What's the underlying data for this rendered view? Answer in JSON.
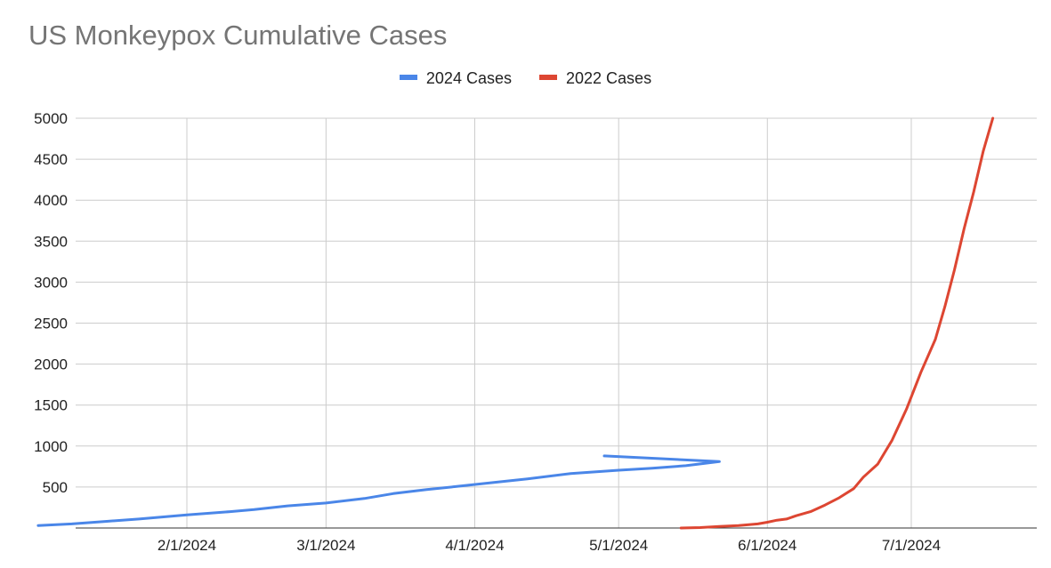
{
  "chart_data": {
    "type": "line",
    "title": "US Monkeypox Cumulative Cases",
    "xlabel": "",
    "ylabel": "",
    "ylim": [
      0,
      5000
    ],
    "yticks": [
      "500",
      "1000",
      "1500",
      "2000",
      "2500",
      "3000",
      "3500",
      "4000",
      "4500",
      "5000"
    ],
    "xticks": [
      "2/1/2024",
      "3/1/2024",
      "4/1/2024",
      "5/1/2024",
      "6/1/2024",
      "7/1/2024"
    ],
    "grid": true,
    "legend_position": "top",
    "series": [
      {
        "name": "2024 Cases",
        "color": "#4a86e8",
        "points": [
          [
            "1/1/2024",
            30
          ],
          [
            "1/8/2024",
            50
          ],
          [
            "1/15/2024",
            80
          ],
          [
            "1/22/2024",
            110
          ],
          [
            "2/1/2024",
            160
          ],
          [
            "2/10/2024",
            200
          ],
          [
            "2/15/2024",
            225
          ],
          [
            "2/22/2024",
            270
          ],
          [
            "3/1/2024",
            305
          ],
          [
            "3/9/2024",
            360
          ],
          [
            "3/15/2024",
            420
          ],
          [
            "3/22/2024",
            470
          ],
          [
            "3/28/2024",
            505
          ],
          [
            "4/5/2024",
            555
          ],
          [
            "4/12/2024",
            600
          ],
          [
            "4/21/2024",
            665
          ],
          [
            "5/1/2024",
            705
          ],
          [
            "5/8/2024",
            730
          ],
          [
            "5/15/2024",
            760
          ],
          [
            "5/22/2024",
            810
          ],
          [
            "4/28/2024",
            880
          ]
        ]
      },
      {
        "name": "2022 Cases",
        "color": "#dd4632",
        "points": [
          [
            "5/14/2024",
            0
          ],
          [
            "5/18/2024",
            5
          ],
          [
            "5/22/2024",
            20
          ],
          [
            "5/26/2024",
            30
          ],
          [
            "5/30/2024",
            50
          ],
          [
            "6/1/2024",
            70
          ],
          [
            "6/3/2024",
            95
          ],
          [
            "6/5/2024",
            110
          ],
          [
            "6/7/2024",
            150
          ],
          [
            "6/10/2024",
            200
          ],
          [
            "6/13/2024",
            280
          ],
          [
            "6/16/2024",
            370
          ],
          [
            "6/19/2024",
            480
          ],
          [
            "6/21/2024",
            620
          ],
          [
            "6/24/2024",
            780
          ],
          [
            "6/27/2024",
            1070
          ],
          [
            "6/30/2024",
            1450
          ],
          [
            "7/3/2024",
            1900
          ],
          [
            "7/6/2024",
            2300
          ],
          [
            "7/8/2024",
            2700
          ],
          [
            "7/10/2024",
            3150
          ],
          [
            "7/12/2024",
            3650
          ],
          [
            "7/14/2024",
            4100
          ],
          [
            "7/16/2024",
            4600
          ],
          [
            "7/18/2024",
            5000
          ]
        ]
      }
    ]
  }
}
